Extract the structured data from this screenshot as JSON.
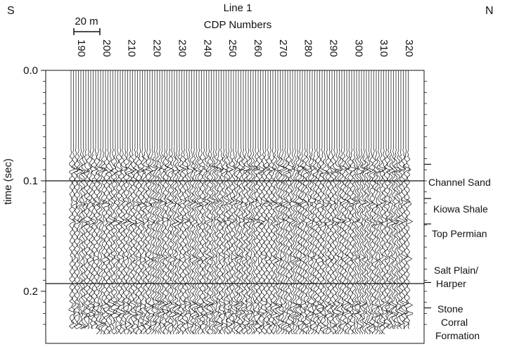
{
  "header": {
    "left_direction": "S",
    "right_direction": "N",
    "line_title": "Line 1",
    "cdp_title": "CDP Numbers",
    "scale_label": "20 m"
  },
  "axes": {
    "time_label": "time (sec)",
    "time_ticks": [
      {
        "value": 0.0,
        "label": "0.0"
      },
      {
        "value": 0.1,
        "label": "0.1"
      },
      {
        "value": 0.2,
        "label": "0.2"
      }
    ],
    "time_range": [
      0.0,
      0.24
    ],
    "cdp_ticks": [
      "190",
      "200",
      "210",
      "220",
      "230",
      "240",
      "250",
      "260",
      "270",
      "280",
      "290",
      "300",
      "310",
      "320"
    ],
    "cdp_range": [
      188,
      326
    ]
  },
  "horizons": [
    {
      "label": "Channel Sand",
      "time": 0.085
    },
    {
      "label": "Kiowa Shale",
      "time": 0.116
    },
    {
      "label": "Top Permian",
      "time": 0.139
    },
    {
      "label": "Salt Plain/ Harper",
      "time": 0.192
    },
    {
      "label": "Stone Corral Formation",
      "time": 0.215
    }
  ],
  "reference_lines": [
    0.1,
    0.193
  ],
  "colors": {
    "ink": "#111111",
    "paper": "#ffffff"
  }
}
